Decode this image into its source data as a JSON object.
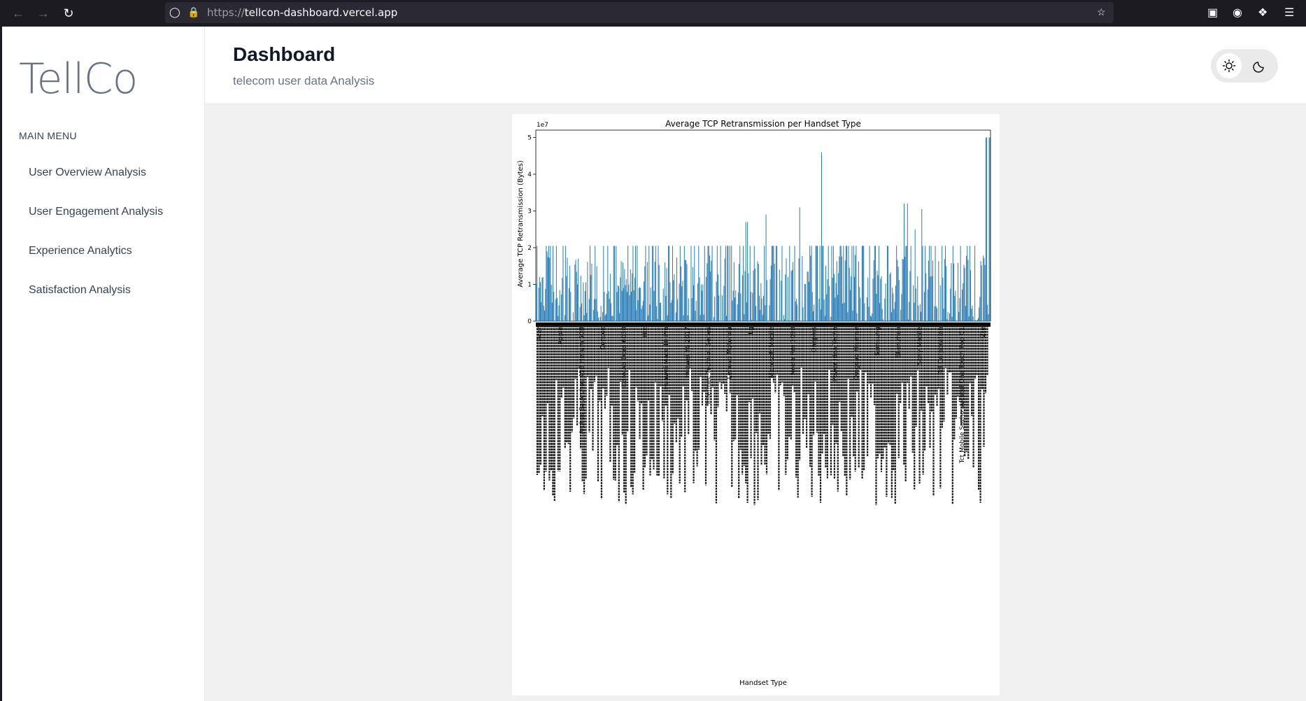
{
  "browser": {
    "url_scheme": "https://",
    "url_host": "tellcon-dashboard.vercel.app"
  },
  "sidebar": {
    "brand": "TellCo",
    "menu_heading": "MAIN MENU",
    "items": [
      {
        "label": "User Overview Analysis"
      },
      {
        "label": "User Engagement Analysis"
      },
      {
        "label": "Experience Analytics"
      },
      {
        "label": "Satisfaction Analysis"
      }
    ]
  },
  "header": {
    "title": "Dashboard",
    "subtitle": "telecom user data Analysis"
  },
  "theme": {
    "active": "light",
    "light_icon": "sun-icon",
    "dark_icon": "moon-icon"
  },
  "chart_data": {
    "type": "bar",
    "title": "Average TCP Retransmission per Handset Type",
    "xlabel": "Handset Type",
    "ylabel": "Average TCP Retransmission (Bytes)",
    "y_multiplier": "1e7",
    "ylim": [
      0,
      5.2
    ],
    "yticks": [
      "0",
      "1",
      "2",
      "3",
      "4",
      "5"
    ],
    "bar_color": "#1f77b4",
    "grid": false,
    "legend": "none",
    "categories_visible": [
      "Acer",
      "Apple",
      "Archos Sa Archos 45B Helium 50B",
      "Concox",
      "Doro Ab Doro 6030",
      "Htc",
      "Huawei Mate 10 Pro",
      "Huawei Y6 2017",
      "Intermec Technol. Series",
      "Lenovo Motorola",
      "Lg",
      "Microsoft Mobile",
      "Nokia Rm 1090",
      "Oneplus",
      "Power Idea Techn",
      "Qingdao Hisense",
      "Samsung",
      "Shenzhen",
      "Sony Mobile",
      "Tcl Corporation",
      "Tct Mobile Suzho. Alcatel One Touch Pop C1",
      "Zte"
    ],
    "values_sampled_e7": [
      1.2,
      1.9,
      2.05,
      1.75,
      1.7,
      0.6,
      0.8,
      2.05,
      2.4,
      2.05,
      0.9,
      2.05,
      0.5,
      2.05,
      1.6,
      2.05,
      1.0,
      2.05,
      0.7,
      2.05,
      2.7,
      2.05,
      2.9,
      2.05,
      1.4,
      2.05,
      3.1,
      2.05,
      4.6,
      3.8,
      2.05,
      1.8,
      2.3,
      2.05,
      3.55,
      2.05,
      3.2,
      2.5,
      3.05,
      2.05,
      2.05,
      1.6,
      2.05,
      1.2,
      5.0
    ]
  }
}
